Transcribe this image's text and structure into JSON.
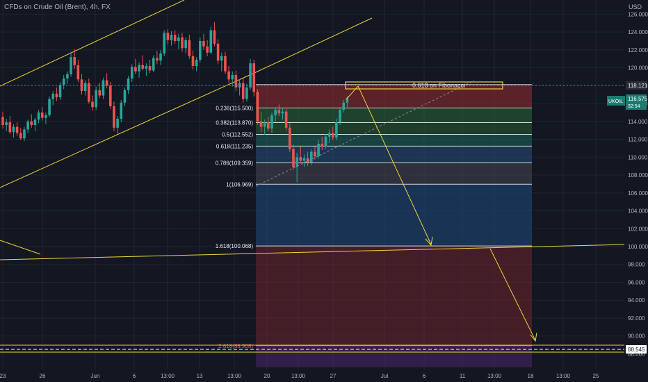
{
  "header": {
    "symbol_title": "CFDs on Crude Oil (Brent), 4h, FX",
    "currency": "USD"
  },
  "chart_data": {
    "type": "candlestick",
    "y_axis": {
      "range": [
        86.0,
        127.0
      ],
      "ticks": [
        "126.000",
        "124.000",
        "122.000",
        "120.000",
        "118.000",
        "116.000",
        "114.000",
        "112.000",
        "110.000",
        "108.000",
        "106.000",
        "104.000",
        "102.000",
        "100.000",
        "98.000",
        "96.000",
        "94.000",
        "92.000",
        "90.000",
        "88.000"
      ]
    },
    "x_axis": {
      "ticks": [
        "23",
        "26",
        "Jun",
        "6",
        "13:00",
        "13",
        "13:00",
        "20",
        "13:00",
        "27",
        "Jul",
        "6",
        "11",
        "13:00",
        "18",
        "13:00",
        "25"
      ]
    },
    "colors": {
      "up": "#26a69a",
      "down": "#ef5350",
      "fib": "#f0d43a",
      "background": "#131722",
      "grid": "#1f2433"
    },
    "price_labels": {
      "level": "118.121",
      "symbol": "UKOIL",
      "current_price": "116.575",
      "countdown": "32:54",
      "bottom_level": "88.545"
    },
    "fibonacci": {
      "levels": [
        {
          "label": "0.236(115.500)",
          "value": 115.5
        },
        {
          "label": "0.382(113.870)",
          "value": 113.87
        },
        {
          "label": "0.5(112.552)",
          "value": 112.552
        },
        {
          "label": "0.618(111.235)",
          "value": 111.235
        },
        {
          "label": "0.786(109.359)",
          "value": 109.359
        },
        {
          "label": "1(106.969)",
          "value": 106.969
        },
        {
          "label": "1.618(100.068)",
          "value": 100.068
        },
        {
          "label": "2.618(88.908)",
          "value": 88.908
        }
      ],
      "top": 118.121
    },
    "annotation": "0.618 on Fibonacci",
    "candles": [
      {
        "o": 114.5,
        "h": 115.1,
        "l": 113.2,
        "c": 113.6
      },
      {
        "o": 113.6,
        "h": 114.3,
        "l": 112.9,
        "c": 113.9
      },
      {
        "o": 113.9,
        "h": 114.6,
        "l": 112.6,
        "c": 112.8
      },
      {
        "o": 112.8,
        "h": 113.7,
        "l": 112.2,
        "c": 113.4
      },
      {
        "o": 113.4,
        "h": 113.9,
        "l": 112.4,
        "c": 112.7
      },
      {
        "o": 112.7,
        "h": 113.3,
        "l": 111.9,
        "c": 112.1
      },
      {
        "o": 112.1,
        "h": 113.4,
        "l": 111.8,
        "c": 113.1
      },
      {
        "o": 113.1,
        "h": 114.2,
        "l": 112.7,
        "c": 114.0
      },
      {
        "o": 114.0,
        "h": 114.8,
        "l": 113.3,
        "c": 113.6
      },
      {
        "o": 113.6,
        "h": 114.4,
        "l": 112.9,
        "c": 114.2
      },
      {
        "o": 114.2,
        "h": 115.3,
        "l": 113.8,
        "c": 115.0
      },
      {
        "o": 115.0,
        "h": 115.6,
        "l": 114.1,
        "c": 114.4
      },
      {
        "o": 114.4,
        "h": 115.0,
        "l": 113.7,
        "c": 114.7
      },
      {
        "o": 114.7,
        "h": 116.8,
        "l": 114.5,
        "c": 116.5
      },
      {
        "o": 116.5,
        "h": 117.4,
        "l": 115.8,
        "c": 117.1
      },
      {
        "o": 117.1,
        "h": 117.8,
        "l": 116.3,
        "c": 116.7
      },
      {
        "o": 116.7,
        "h": 118.4,
        "l": 116.4,
        "c": 118.1
      },
      {
        "o": 118.1,
        "h": 119.2,
        "l": 117.6,
        "c": 118.8
      },
      {
        "o": 118.8,
        "h": 119.6,
        "l": 118.2,
        "c": 119.3
      },
      {
        "o": 119.3,
        "h": 121.8,
        "l": 119.0,
        "c": 121.2
      },
      {
        "o": 121.2,
        "h": 122.1,
        "l": 119.9,
        "c": 120.3
      },
      {
        "o": 120.3,
        "h": 120.9,
        "l": 118.4,
        "c": 118.7
      },
      {
        "o": 118.7,
        "h": 119.3,
        "l": 117.0,
        "c": 117.4
      },
      {
        "o": 117.4,
        "h": 118.6,
        "l": 116.9,
        "c": 118.3
      },
      {
        "o": 118.3,
        "h": 118.8,
        "l": 116.0,
        "c": 116.2
      },
      {
        "o": 116.2,
        "h": 116.9,
        "l": 115.2,
        "c": 115.6
      },
      {
        "o": 115.6,
        "h": 117.9,
        "l": 115.3,
        "c": 117.5
      },
      {
        "o": 117.5,
        "h": 118.3,
        "l": 116.6,
        "c": 116.9
      },
      {
        "o": 116.9,
        "h": 118.9,
        "l": 116.5,
        "c": 118.6
      },
      {
        "o": 118.6,
        "h": 119.4,
        "l": 117.7,
        "c": 118.0
      },
      {
        "o": 118.0,
        "h": 118.4,
        "l": 115.4,
        "c": 115.7
      },
      {
        "o": 115.7,
        "h": 116.2,
        "l": 112.9,
        "c": 113.3
      },
      {
        "o": 113.3,
        "h": 114.6,
        "l": 112.6,
        "c": 114.3
      },
      {
        "o": 114.3,
        "h": 116.4,
        "l": 113.9,
        "c": 116.1
      },
      {
        "o": 116.1,
        "h": 117.8,
        "l": 115.7,
        "c": 117.5
      },
      {
        "o": 117.5,
        "h": 119.1,
        "l": 117.1,
        "c": 118.8
      },
      {
        "o": 118.8,
        "h": 120.4,
        "l": 118.4,
        "c": 120.1
      },
      {
        "o": 120.1,
        "h": 121.0,
        "l": 119.3,
        "c": 119.6
      },
      {
        "o": 119.6,
        "h": 120.6,
        "l": 118.9,
        "c": 120.3
      },
      {
        "o": 120.3,
        "h": 121.4,
        "l": 119.7,
        "c": 119.9
      },
      {
        "o": 119.9,
        "h": 120.5,
        "l": 119.1,
        "c": 120.2
      },
      {
        "o": 120.2,
        "h": 120.9,
        "l": 119.4,
        "c": 119.7
      },
      {
        "o": 119.7,
        "h": 121.4,
        "l": 119.5,
        "c": 121.1
      },
      {
        "o": 121.1,
        "h": 121.9,
        "l": 120.4,
        "c": 120.8
      },
      {
        "o": 120.8,
        "h": 122.0,
        "l": 120.3,
        "c": 121.6
      },
      {
        "o": 121.6,
        "h": 124.2,
        "l": 121.3,
        "c": 123.9
      },
      {
        "o": 123.9,
        "h": 124.3,
        "l": 122.6,
        "c": 123.1
      },
      {
        "o": 123.1,
        "h": 124.1,
        "l": 122.5,
        "c": 123.7
      },
      {
        "o": 123.7,
        "h": 124.2,
        "l": 122.7,
        "c": 123.0
      },
      {
        "o": 123.0,
        "h": 123.8,
        "l": 122.1,
        "c": 123.4
      },
      {
        "o": 123.4,
        "h": 123.9,
        "l": 121.8,
        "c": 122.2
      },
      {
        "o": 122.2,
        "h": 123.4,
        "l": 121.6,
        "c": 123.1
      },
      {
        "o": 123.1,
        "h": 123.7,
        "l": 121.0,
        "c": 121.3
      },
      {
        "o": 121.3,
        "h": 121.9,
        "l": 119.8,
        "c": 120.2
      },
      {
        "o": 120.2,
        "h": 121.2,
        "l": 119.6,
        "c": 120.9
      },
      {
        "o": 120.9,
        "h": 123.4,
        "l": 120.6,
        "c": 123.0
      },
      {
        "o": 123.0,
        "h": 123.8,
        "l": 122.0,
        "c": 122.4
      },
      {
        "o": 122.4,
        "h": 123.1,
        "l": 121.3,
        "c": 121.7
      },
      {
        "o": 121.7,
        "h": 124.6,
        "l": 121.5,
        "c": 124.2
      },
      {
        "o": 124.2,
        "h": 125.1,
        "l": 122.4,
        "c": 122.7
      },
      {
        "o": 122.7,
        "h": 123.2,
        "l": 120.4,
        "c": 120.8
      },
      {
        "o": 120.8,
        "h": 121.7,
        "l": 119.6,
        "c": 121.3
      },
      {
        "o": 121.3,
        "h": 121.8,
        "l": 119.3,
        "c": 119.6
      },
      {
        "o": 119.6,
        "h": 120.2,
        "l": 118.3,
        "c": 118.7
      },
      {
        "o": 118.7,
        "h": 119.6,
        "l": 117.9,
        "c": 119.2
      },
      {
        "o": 119.2,
        "h": 119.7,
        "l": 117.4,
        "c": 117.8
      },
      {
        "o": 117.8,
        "h": 118.7,
        "l": 116.9,
        "c": 118.3
      },
      {
        "o": 118.3,
        "h": 118.9,
        "l": 116.1,
        "c": 116.5
      },
      {
        "o": 116.5,
        "h": 118.2,
        "l": 116.2,
        "c": 117.8
      },
      {
        "o": 117.8,
        "h": 121.0,
        "l": 117.5,
        "c": 120.5
      },
      {
        "o": 120.5,
        "h": 120.9,
        "l": 116.8,
        "c": 117.3
      },
      {
        "o": 117.3,
        "h": 117.6,
        "l": 113.6,
        "c": 114.0
      },
      {
        "o": 114.0,
        "h": 115.1,
        "l": 112.8,
        "c": 113.4
      },
      {
        "o": 113.4,
        "h": 114.2,
        "l": 112.5,
        "c": 113.9
      },
      {
        "o": 113.9,
        "h": 114.5,
        "l": 112.9,
        "c": 113.2
      },
      {
        "o": 113.2,
        "h": 115.0,
        "l": 112.7,
        "c": 114.7
      },
      {
        "o": 114.7,
        "h": 115.6,
        "l": 114.0,
        "c": 115.3
      },
      {
        "o": 115.3,
        "h": 115.9,
        "l": 114.6,
        "c": 114.9
      },
      {
        "o": 114.9,
        "h": 115.5,
        "l": 114.2,
        "c": 115.1
      },
      {
        "o": 115.1,
        "h": 115.4,
        "l": 113.0,
        "c": 113.3
      },
      {
        "o": 113.3,
        "h": 113.8,
        "l": 110.6,
        "c": 110.9
      },
      {
        "o": 110.9,
        "h": 111.4,
        "l": 108.6,
        "c": 108.9
      },
      {
        "o": 108.9,
        "h": 110.5,
        "l": 107.2,
        "c": 110.0
      },
      {
        "o": 110.0,
        "h": 111.2,
        "l": 109.3,
        "c": 109.6
      },
      {
        "o": 109.6,
        "h": 110.3,
        "l": 108.9,
        "c": 109.9
      },
      {
        "o": 109.9,
        "h": 110.6,
        "l": 109.0,
        "c": 109.4
      },
      {
        "o": 109.4,
        "h": 110.9,
        "l": 109.1,
        "c": 110.6
      },
      {
        "o": 110.6,
        "h": 111.2,
        "l": 109.7,
        "c": 110.1
      },
      {
        "o": 110.1,
        "h": 111.9,
        "l": 109.8,
        "c": 111.5
      },
      {
        "o": 111.5,
        "h": 112.3,
        "l": 110.8,
        "c": 111.2
      },
      {
        "o": 111.2,
        "h": 112.6,
        "l": 110.9,
        "c": 112.3
      },
      {
        "o": 112.3,
        "h": 113.1,
        "l": 111.6,
        "c": 112.7
      },
      {
        "o": 112.7,
        "h": 113.4,
        "l": 111.9,
        "c": 112.2
      },
      {
        "o": 112.2,
        "h": 114.3,
        "l": 111.9,
        "c": 113.9
      },
      {
        "o": 113.9,
        "h": 115.6,
        "l": 113.6,
        "c": 115.3
      },
      {
        "o": 115.3,
        "h": 116.4,
        "l": 115.0,
        "c": 116.1
      },
      {
        "o": 116.1,
        "h": 116.8,
        "l": 115.6,
        "c": 116.6
      }
    ]
  }
}
